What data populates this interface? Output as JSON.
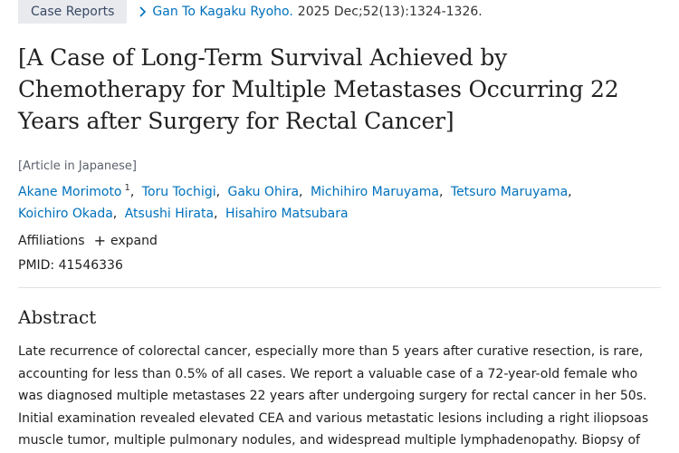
{
  "article": {
    "publication_type": "Case Reports",
    "journal": "Gan To Kagaku Ryoho.",
    "citation": "2025 Dec;52(13):1324-1326.",
    "title": "[A Case of Long-Term Survival Achieved by Chemotherapy for Multiple Metastases Occurring 22 Years after Surgery for Rectal Cancer]",
    "language_note": "[Article in Japanese]",
    "authors": [
      {
        "name": "Akane Morimoto",
        "sup": "1"
      },
      {
        "name": "Toru Tochigi"
      },
      {
        "name": "Gaku Ohira"
      },
      {
        "name": "Michihiro Maruyama"
      },
      {
        "name": "Tetsuro Maruyama"
      },
      {
        "name": "Koichiro Okada"
      },
      {
        "name": "Atsushi Hirata"
      },
      {
        "name": "Hisahiro Matsubara"
      }
    ],
    "affiliations_label": "Affiliations",
    "expand_label": "expand",
    "pmid_label": "PMID:",
    "pmid": "41546336"
  },
  "abstract": {
    "heading": "Abstract",
    "text": "Late recurrence of colorectal cancer, especially more than 5 years after curative resection, is rare, accounting for less than 0.5% of all cases. We report a valuable case of a 72-year-old female who was diagnosed multiple metastases 22 years after undergoing surgery for rectal cancer in her 50s. Initial examination revealed elevated CEA and various metastatic lesions including a right iliopsoas muscle tumor, multiple pulmonary nodules, and widespread multiple lymphadenopathy. Biopsy of the"
  },
  "icons": {
    "journal_chevron": "chevron-right-icon",
    "expand": "plus-icon"
  },
  "colors": {
    "link": "#0071bc",
    "badge_bg": "#e8eaee",
    "badge_text": "#3a4a66"
  }
}
